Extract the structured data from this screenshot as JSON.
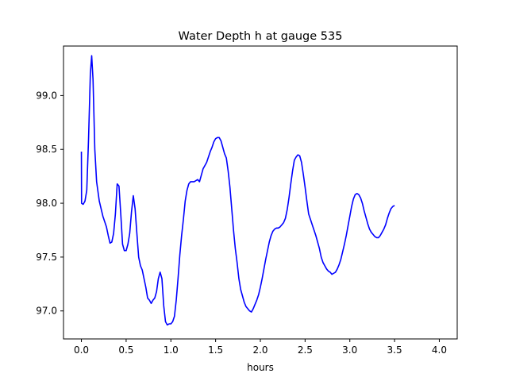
{
  "chart_data": {
    "type": "line",
    "title": "Water Depth h at gauge 535",
    "xlabel": "hours",
    "ylabel": "",
    "xlim": [
      -0.2,
      4.2
    ],
    "ylim": [
      96.74,
      99.46
    ],
    "xticks": [
      0.0,
      0.5,
      1.0,
      1.5,
      2.0,
      2.5,
      3.0,
      3.5,
      4.0
    ],
    "xtick_labels": [
      "0.0",
      "0.5",
      "1.0",
      "1.5",
      "2.0",
      "2.5",
      "3.0",
      "3.5",
      "4.0"
    ],
    "yticks": [
      97.0,
      97.5,
      98.0,
      98.5,
      99.0
    ],
    "ytick_labels": [
      "97.0",
      "97.5",
      "98.0",
      "98.5",
      "99.0"
    ],
    "grid": false,
    "series": [
      {
        "color": "#0000ff",
        "points": [
          [
            0.0,
            98.48
          ],
          [
            0.002,
            98.0
          ],
          [
            0.02,
            97.99
          ],
          [
            0.04,
            98.02
          ],
          [
            0.06,
            98.12
          ],
          [
            0.08,
            98.6
          ],
          [
            0.1,
            99.2
          ],
          [
            0.115,
            99.37
          ],
          [
            0.13,
            99.15
          ],
          [
            0.15,
            98.5
          ],
          [
            0.17,
            98.2
          ],
          [
            0.2,
            98.02
          ],
          [
            0.24,
            97.88
          ],
          [
            0.28,
            97.78
          ],
          [
            0.3,
            97.7
          ],
          [
            0.32,
            97.63
          ],
          [
            0.34,
            97.64
          ],
          [
            0.36,
            97.72
          ],
          [
            0.38,
            97.9
          ],
          [
            0.4,
            98.18
          ],
          [
            0.42,
            98.16
          ],
          [
            0.44,
            97.9
          ],
          [
            0.46,
            97.62
          ],
          [
            0.48,
            97.56
          ],
          [
            0.5,
            97.56
          ],
          [
            0.52,
            97.62
          ],
          [
            0.54,
            97.72
          ],
          [
            0.56,
            97.92
          ],
          [
            0.58,
            98.07
          ],
          [
            0.6,
            97.95
          ],
          [
            0.62,
            97.72
          ],
          [
            0.64,
            97.5
          ],
          [
            0.66,
            97.42
          ],
          [
            0.68,
            97.38
          ],
          [
            0.7,
            97.3
          ],
          [
            0.72,
            97.22
          ],
          [
            0.74,
            97.12
          ],
          [
            0.76,
            97.1
          ],
          [
            0.78,
            97.07
          ],
          [
            0.8,
            97.1
          ],
          [
            0.82,
            97.12
          ],
          [
            0.84,
            97.18
          ],
          [
            0.86,
            97.3
          ],
          [
            0.88,
            97.36
          ],
          [
            0.9,
            97.3
          ],
          [
            0.92,
            97.05
          ],
          [
            0.94,
            96.9
          ],
          [
            0.96,
            96.87
          ],
          [
            0.98,
            96.88
          ],
          [
            1.0,
            96.88
          ],
          [
            1.02,
            96.9
          ],
          [
            1.04,
            96.95
          ],
          [
            1.06,
            97.1
          ],
          [
            1.08,
            97.3
          ],
          [
            1.1,
            97.52
          ],
          [
            1.12,
            97.7
          ],
          [
            1.14,
            97.85
          ],
          [
            1.16,
            98.02
          ],
          [
            1.18,
            98.12
          ],
          [
            1.2,
            98.18
          ],
          [
            1.22,
            98.2
          ],
          [
            1.24,
            98.2
          ],
          [
            1.26,
            98.2
          ],
          [
            1.28,
            98.21
          ],
          [
            1.3,
            98.22
          ],
          [
            1.32,
            98.2
          ],
          [
            1.34,
            98.26
          ],
          [
            1.36,
            98.32
          ],
          [
            1.38,
            98.35
          ],
          [
            1.4,
            98.38
          ],
          [
            1.42,
            98.43
          ],
          [
            1.44,
            98.48
          ],
          [
            1.46,
            98.52
          ],
          [
            1.48,
            98.57
          ],
          [
            1.5,
            98.6
          ],
          [
            1.52,
            98.61
          ],
          [
            1.54,
            98.61
          ],
          [
            1.56,
            98.58
          ],
          [
            1.58,
            98.52
          ],
          [
            1.6,
            98.46
          ],
          [
            1.62,
            98.42
          ],
          [
            1.64,
            98.3
          ],
          [
            1.66,
            98.15
          ],
          [
            1.68,
            97.95
          ],
          [
            1.7,
            97.75
          ],
          [
            1.72,
            97.58
          ],
          [
            1.74,
            97.45
          ],
          [
            1.76,
            97.3
          ],
          [
            1.78,
            97.2
          ],
          [
            1.8,
            97.14
          ],
          [
            1.82,
            97.08
          ],
          [
            1.84,
            97.04
          ],
          [
            1.86,
            97.02
          ],
          [
            1.88,
            97.0
          ],
          [
            1.9,
            96.99
          ],
          [
            1.92,
            97.02
          ],
          [
            1.94,
            97.06
          ],
          [
            1.96,
            97.1
          ],
          [
            1.98,
            97.15
          ],
          [
            2.0,
            97.22
          ],
          [
            2.02,
            97.3
          ],
          [
            2.04,
            97.39
          ],
          [
            2.06,
            97.48
          ],
          [
            2.08,
            97.56
          ],
          [
            2.1,
            97.64
          ],
          [
            2.12,
            97.7
          ],
          [
            2.14,
            97.74
          ],
          [
            2.16,
            97.76
          ],
          [
            2.18,
            97.77
          ],
          [
            2.2,
            97.77
          ],
          [
            2.22,
            97.78
          ],
          [
            2.24,
            97.8
          ],
          [
            2.26,
            97.82
          ],
          [
            2.28,
            97.86
          ],
          [
            2.3,
            97.94
          ],
          [
            2.32,
            98.05
          ],
          [
            2.34,
            98.18
          ],
          [
            2.36,
            98.3
          ],
          [
            2.38,
            98.4
          ],
          [
            2.4,
            98.43
          ],
          [
            2.42,
            98.45
          ],
          [
            2.44,
            98.44
          ],
          [
            2.46,
            98.38
          ],
          [
            2.48,
            98.27
          ],
          [
            2.5,
            98.15
          ],
          [
            2.52,
            98.02
          ],
          [
            2.54,
            97.9
          ],
          [
            2.56,
            97.85
          ],
          [
            2.58,
            97.8
          ],
          [
            2.6,
            97.75
          ],
          [
            2.62,
            97.7
          ],
          [
            2.64,
            97.64
          ],
          [
            2.66,
            97.58
          ],
          [
            2.68,
            97.5
          ],
          [
            2.7,
            97.45
          ],
          [
            2.72,
            97.42
          ],
          [
            2.74,
            97.39
          ],
          [
            2.76,
            97.37
          ],
          [
            2.78,
            97.36
          ],
          [
            2.8,
            97.34
          ],
          [
            2.82,
            97.35
          ],
          [
            2.84,
            97.36
          ],
          [
            2.86,
            97.39
          ],
          [
            2.88,
            97.43
          ],
          [
            2.9,
            97.48
          ],
          [
            2.92,
            97.55
          ],
          [
            2.94,
            97.62
          ],
          [
            2.96,
            97.7
          ],
          [
            2.98,
            97.79
          ],
          [
            3.0,
            97.88
          ],
          [
            3.02,
            97.97
          ],
          [
            3.04,
            98.04
          ],
          [
            3.06,
            98.08
          ],
          [
            3.08,
            98.09
          ],
          [
            3.1,
            98.08
          ],
          [
            3.12,
            98.05
          ],
          [
            3.14,
            98.0
          ],
          [
            3.16,
            97.93
          ],
          [
            3.18,
            97.87
          ],
          [
            3.2,
            97.81
          ],
          [
            3.22,
            97.76
          ],
          [
            3.24,
            97.73
          ],
          [
            3.26,
            97.71
          ],
          [
            3.28,
            97.69
          ],
          [
            3.3,
            97.68
          ],
          [
            3.32,
            97.68
          ],
          [
            3.34,
            97.7
          ],
          [
            3.36,
            97.73
          ],
          [
            3.38,
            97.76
          ],
          [
            3.4,
            97.8
          ],
          [
            3.42,
            97.86
          ],
          [
            3.44,
            97.91
          ],
          [
            3.46,
            97.95
          ],
          [
            3.48,
            97.97
          ],
          [
            3.5,
            97.98
          ]
        ]
      }
    ]
  }
}
